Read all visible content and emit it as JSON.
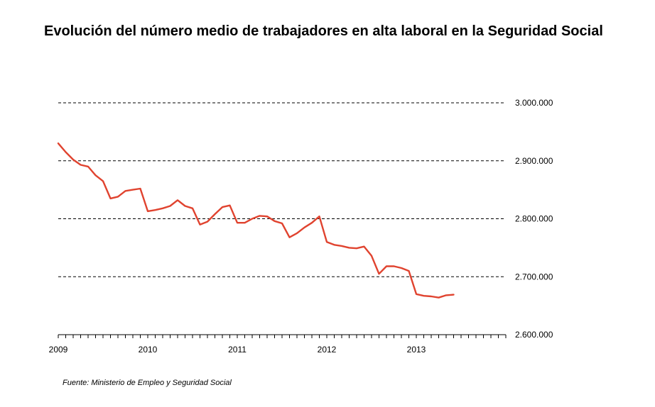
{
  "title": "Evolución del número medio de trabajadores en alta laboral en la Seguridad Social",
  "source": "Fuente: Ministerio de Empleo y Seguridad Social",
  "colors": {
    "line": "#e0432f",
    "grid": "#000000",
    "axis": "#000000"
  },
  "chart_data": {
    "type": "line",
    "title": "Evolución del número medio de trabajadores en alta laboral en la Seguridad Social",
    "xlabel": "",
    "ylabel": "",
    "xlim": [
      2009.0,
      2014.0
    ],
    "ylim": [
      2600000,
      3000000
    ],
    "x_ticks": [
      2009,
      2010,
      2011,
      2012,
      2013
    ],
    "x_tick_labels": [
      "2009",
      "2010",
      "2011",
      "2012",
      "2013"
    ],
    "y_ticks": [
      2600000,
      2700000,
      2800000,
      2900000,
      3000000
    ],
    "y_tick_labels": [
      "2.600.000",
      "2.700.000",
      "2.800.000",
      "2.900.000",
      "3.000.000"
    ],
    "y_axis_position": "right",
    "grid": "horizontal dashed",
    "series": [
      {
        "x": [
          2009.0,
          2009.083,
          2009.167,
          2009.25,
          2009.333,
          2009.417,
          2009.5,
          2009.583,
          2009.667,
          2009.75,
          2009.833,
          2009.917,
          2010.0,
          2010.083,
          2010.167,
          2010.25,
          2010.333,
          2010.417,
          2010.5,
          2010.583,
          2010.667,
          2010.75,
          2010.833,
          2010.917,
          2011.0,
          2011.083,
          2011.167,
          2011.25,
          2011.333,
          2011.417,
          2011.5,
          2011.583,
          2011.667,
          2011.75,
          2011.833,
          2011.917,
          2012.0,
          2012.083,
          2012.167,
          2012.25,
          2012.333,
          2012.417,
          2012.5,
          2012.583,
          2012.667,
          2012.75,
          2012.833,
          2012.917,
          2013.0,
          2013.083,
          2013.167,
          2013.25,
          2013.333,
          2013.417
        ],
        "values": [
          2930000,
          2915000,
          2902000,
          2893000,
          2890000,
          2875000,
          2865000,
          2835000,
          2838000,
          2848000,
          2850000,
          2852000,
          2813000,
          2815000,
          2818000,
          2822000,
          2832000,
          2822000,
          2818000,
          2790000,
          2795000,
          2808000,
          2820000,
          2823000,
          2793000,
          2793000,
          2800000,
          2805000,
          2804000,
          2796000,
          2792000,
          2768000,
          2775000,
          2785000,
          2793000,
          2804000,
          2760000,
          2755000,
          2753000,
          2750000,
          2749000,
          2752000,
          2736000,
          2705000,
          2718000,
          2718000,
          2715000,
          2710000,
          2670000,
          2667000,
          2666000,
          2664000,
          2668000,
          2669000
        ]
      }
    ]
  }
}
